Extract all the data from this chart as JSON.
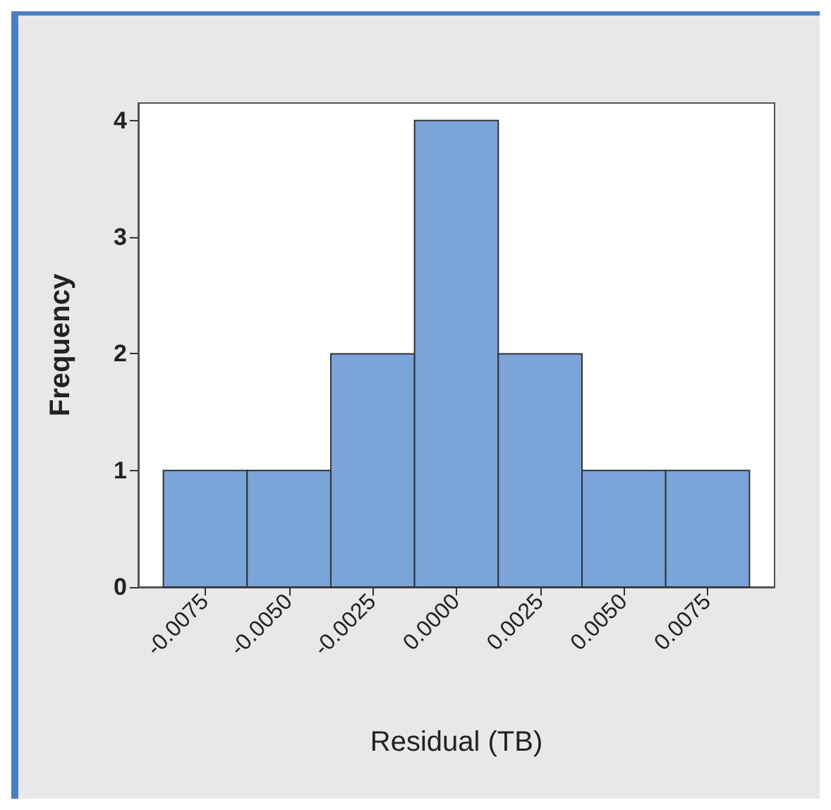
{
  "chart_data": {
    "type": "histogram",
    "xlabel": "Residual (TB)",
    "ylabel": "Frequency",
    "bins": [
      -0.00875,
      -0.00625,
      -0.00375,
      -0.00125,
      0.00125,
      0.00375,
      0.00625,
      0.00875
    ],
    "values": [
      1,
      1,
      2,
      4,
      2,
      1,
      1
    ],
    "color": "#7ba4d8",
    "xlim": [
      -0.0095,
      0.0095
    ],
    "xticks": [
      {
        "value": -0.0075,
        "label": "-0.0075"
      },
      {
        "value": -0.005,
        "label": "-0.0050"
      },
      {
        "value": -0.0025,
        "label": "-0.0025"
      },
      {
        "value": 0,
        "label": "0.0000"
      },
      {
        "value": 0.0025,
        "label": "0.0025"
      },
      {
        "value": 0.005,
        "label": "0.0050"
      },
      {
        "value": 0.0075,
        "label": "0.0075"
      }
    ],
    "ylim": [
      0,
      4.15
    ],
    "yticks": [
      0,
      1,
      2,
      3,
      4
    ],
    "grid": false
  }
}
